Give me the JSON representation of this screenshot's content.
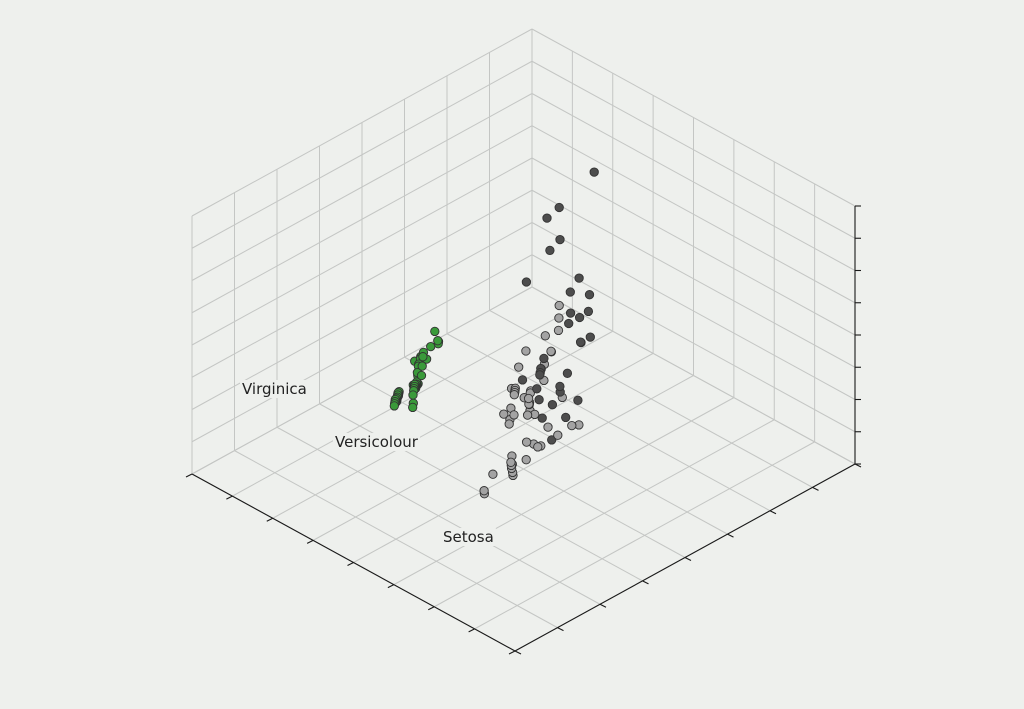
{
  "chart_data": {
    "type": "scatter",
    "projection": "3d",
    "title": "",
    "xlabel": "",
    "ylabel": "",
    "zlabel": "",
    "grid": true,
    "tick_labels_visible": false,
    "annotations": [
      {
        "text": "Virginica"
      },
      {
        "text": "Versicolour"
      },
      {
        "text": "Setosa"
      }
    ],
    "series": [
      {
        "color": "#4d4d4d",
        "points": [
          [
            0.14,
            0.34,
            0.78
          ],
          [
            0.3,
            0.4,
            0.8
          ],
          [
            0.45,
            0.52,
            0.95
          ],
          [
            0.44,
            0.55,
            0.88
          ],
          [
            0.47,
            0.55,
            0.86
          ],
          [
            0.52,
            0.53,
            0.76
          ],
          [
            0.46,
            0.63,
            0.8
          ],
          [
            0.42,
            0.62,
            0.7
          ],
          [
            0.48,
            0.68,
            0.72
          ],
          [
            0.5,
            0.64,
            0.66
          ],
          [
            0.6,
            0.75,
            0.93
          ],
          [
            0.62,
            0.8,
            0.88
          ],
          [
            0.58,
            0.73,
            0.82
          ],
          [
            0.56,
            0.77,
            0.74
          ],
          [
            0.56,
            0.74,
            0.7
          ],
          [
            0.54,
            0.72,
            0.67
          ],
          [
            0.58,
            0.72,
            0.58
          ],
          [
            0.62,
            0.68,
            0.6
          ],
          [
            0.6,
            0.66,
            0.57
          ],
          [
            0.63,
            0.7,
            0.66
          ],
          [
            0.66,
            0.72,
            0.64
          ],
          [
            0.68,
            0.74,
            0.66
          ],
          [
            0.64,
            0.76,
            0.6
          ],
          [
            0.62,
            0.74,
            0.55
          ],
          [
            0.7,
            0.8,
            0.6
          ],
          [
            0.72,
            0.78,
            0.62
          ],
          [
            0.73,
            0.8,
            0.57
          ],
          [
            0.68,
            0.82,
            0.55
          ],
          [
            0.74,
            0.84,
            0.52
          ],
          [
            0.72,
            0.9,
            0.7
          ],
          [
            0.86,
            0.92,
            0.86
          ],
          [
            0.94,
            0.96,
            0.98
          ]
        ]
      },
      {
        "color": "#a3a3a3",
        "points": [
          [
            0.3,
            0.4,
            0.42
          ],
          [
            0.32,
            0.42,
            0.4
          ],
          [
            0.34,
            0.44,
            0.38
          ],
          [
            0.36,
            0.42,
            0.36
          ],
          [
            0.38,
            0.46,
            0.34
          ],
          [
            0.4,
            0.48,
            0.37
          ],
          [
            0.41,
            0.47,
            0.32
          ],
          [
            0.44,
            0.5,
            0.3
          ],
          [
            0.46,
            0.48,
            0.26
          ],
          [
            0.48,
            0.5,
            0.28
          ],
          [
            0.5,
            0.52,
            0.24
          ],
          [
            0.52,
            0.54,
            0.3
          ],
          [
            0.54,
            0.56,
            0.32
          ],
          [
            0.56,
            0.58,
            0.35
          ],
          [
            0.58,
            0.6,
            0.4
          ],
          [
            0.6,
            0.58,
            0.44
          ],
          [
            0.62,
            0.6,
            0.46
          ],
          [
            0.64,
            0.62,
            0.48
          ],
          [
            0.66,
            0.64,
            0.5
          ],
          [
            0.68,
            0.66,
            0.45
          ],
          [
            0.6,
            0.64,
            0.38
          ],
          [
            0.58,
            0.66,
            0.33
          ],
          [
            0.62,
            0.68,
            0.3
          ],
          [
            0.66,
            0.7,
            0.35
          ],
          [
            0.7,
            0.72,
            0.4
          ],
          [
            0.72,
            0.74,
            0.36
          ],
          [
            0.74,
            0.72,
            0.3
          ],
          [
            0.76,
            0.74,
            0.34
          ],
          [
            0.78,
            0.76,
            0.4
          ],
          [
            0.8,
            0.78,
            0.46
          ],
          [
            0.82,
            0.8,
            0.44
          ],
          [
            0.84,
            0.82,
            0.48
          ],
          [
            0.86,
            0.84,
            0.52
          ],
          [
            0.8,
            0.86,
            0.55
          ],
          [
            0.76,
            0.88,
            0.58
          ],
          [
            0.7,
            0.86,
            0.56
          ],
          [
            0.66,
            0.84,
            0.52
          ],
          [
            0.52,
            0.46,
            0.2
          ],
          [
            0.48,
            0.44,
            0.18
          ],
          [
            0.46,
            0.46,
            0.22
          ],
          [
            0.44,
            0.4,
            0.2
          ],
          [
            0.4,
            0.38,
            0.24
          ],
          [
            0.36,
            0.36,
            0.26
          ],
          [
            0.54,
            0.5,
            0.22
          ],
          [
            0.58,
            0.54,
            0.26
          ],
          [
            0.64,
            0.66,
            0.42
          ],
          [
            0.9,
            0.8,
            0.4
          ],
          [
            0.92,
            0.82,
            0.44
          ],
          [
            0.78,
            0.7,
            0.32
          ],
          [
            0.5,
            0.62,
            0.36
          ]
        ]
      },
      {
        "color": "#3a9a3a",
        "points": [
          [
            0.4,
            0.12,
            0.2
          ],
          [
            0.46,
            0.14,
            0.16
          ],
          [
            0.48,
            0.16,
            0.18
          ],
          [
            0.5,
            0.2,
            0.22
          ],
          [
            0.54,
            0.22,
            0.2
          ],
          [
            0.56,
            0.24,
            0.26
          ],
          [
            0.58,
            0.26,
            0.3
          ],
          [
            0.6,
            0.28,
            0.32
          ],
          [
            0.62,
            0.3,
            0.28
          ],
          [
            0.64,
            0.32,
            0.34
          ],
          [
            0.66,
            0.34,
            0.38
          ],
          [
            0.68,
            0.36,
            0.36
          ],
          [
            0.7,
            0.38,
            0.4
          ],
          [
            0.72,
            0.4,
            0.42
          ],
          [
            0.74,
            0.42,
            0.44
          ],
          [
            0.76,
            0.44,
            0.46
          ],
          [
            0.78,
            0.46,
            0.5
          ],
          [
            0.8,
            0.48,
            0.52
          ],
          [
            0.82,
            0.5,
            0.56
          ],
          [
            0.84,
            0.52,
            0.58
          ],
          [
            0.86,
            0.54,
            0.6
          ],
          [
            0.88,
            0.56,
            0.62
          ],
          [
            0.9,
            0.58,
            0.6
          ],
          [
            0.92,
            0.6,
            0.66
          ],
          [
            0.6,
            0.22,
            0.18
          ],
          [
            0.62,
            0.24,
            0.2
          ],
          [
            0.64,
            0.26,
            0.22
          ],
          [
            0.66,
            0.28,
            0.26
          ],
          [
            0.68,
            0.3,
            0.28
          ],
          [
            0.7,
            0.32,
            0.3
          ],
          [
            0.72,
            0.34,
            0.32
          ],
          [
            0.74,
            0.36,
            0.34
          ],
          [
            0.76,
            0.38,
            0.38
          ],
          [
            0.78,
            0.4,
            0.4
          ],
          [
            0.8,
            0.42,
            0.42
          ],
          [
            0.82,
            0.44,
            0.46
          ],
          [
            0.84,
            0.46,
            0.48
          ],
          [
            0.86,
            0.48,
            0.5
          ],
          [
            0.88,
            0.5,
            0.52
          ],
          [
            0.56,
            0.3,
            0.4
          ],
          [
            0.58,
            0.32,
            0.42
          ],
          [
            0.6,
            0.34,
            0.46
          ],
          [
            0.64,
            0.36,
            0.48
          ],
          [
            0.68,
            0.38,
            0.5
          ],
          [
            0.72,
            0.42,
            0.54
          ],
          [
            0.76,
            0.46,
            0.56
          ],
          [
            0.8,
            0.5,
            0.58
          ],
          [
            0.52,
            0.18,
            0.12
          ],
          [
            0.44,
            0.1,
            0.1
          ],
          [
            0.94,
            0.62,
            0.64
          ]
        ]
      }
    ]
  }
}
